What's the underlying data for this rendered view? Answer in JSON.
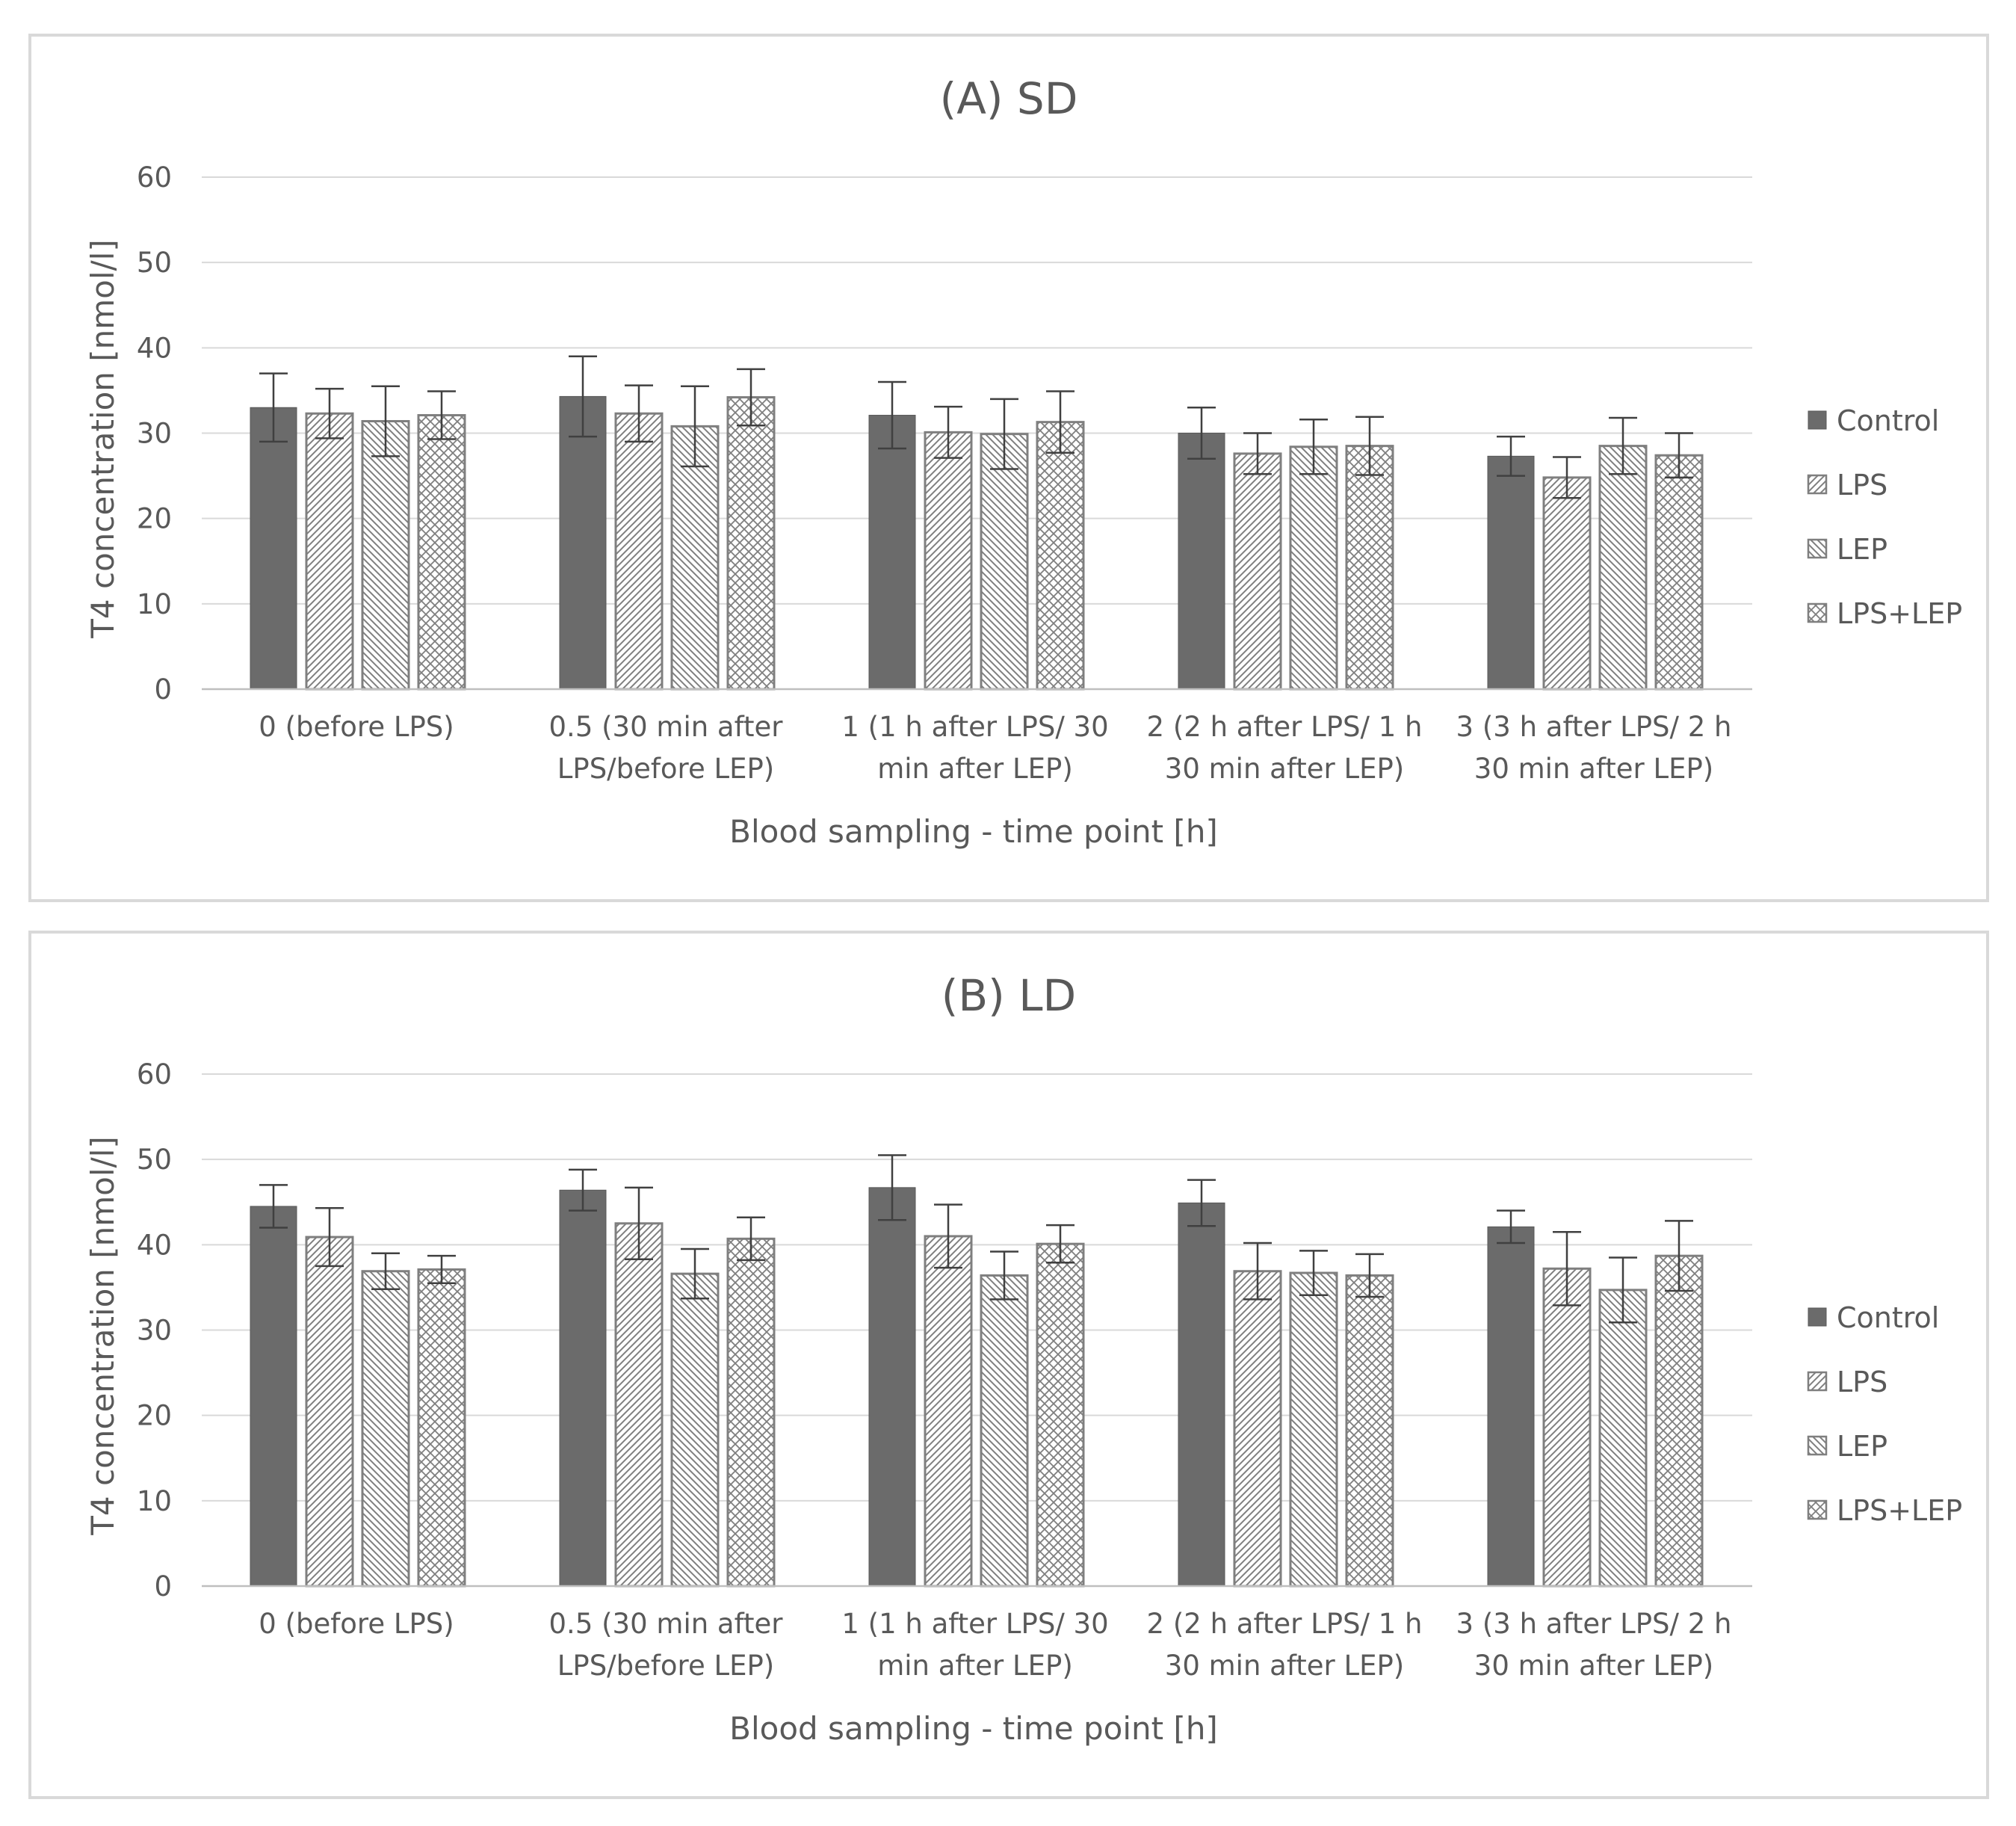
{
  "chart_data": [
    {
      "type": "bar",
      "title": "(A) SD",
      "xlabel": "Blood sampling - time point [h]",
      "ylabel": "T4 concentration [nmol/l]",
      "ylim": [
        0,
        60
      ],
      "yticks": [
        0,
        10,
        20,
        30,
        40,
        50,
        60
      ],
      "grid": true,
      "legend_position": "right",
      "categories": [
        [
          "0 (before LPS)"
        ],
        [
          "0.5 (30 min after",
          "LPS/before LEP)"
        ],
        [
          "1 (1 h after LPS/ 30",
          "min after LEP)"
        ],
        [
          "2 (2 h after LPS/ 1 h",
          "30 min after LEP)"
        ],
        [
          "3 (3 h after LPS/ 2 h",
          "30 min after LEP)"
        ]
      ],
      "series": [
        {
          "name": "Control",
          "pattern": "solid",
          "values": [
            33.0,
            34.3,
            32.1,
            30.0,
            27.3
          ],
          "errors": [
            4.0,
            4.7,
            3.9,
            3.0,
            2.3
          ]
        },
        {
          "name": "LPS",
          "pattern": "diag-up",
          "values": [
            32.3,
            32.3,
            30.1,
            27.6,
            24.8
          ],
          "errors": [
            2.9,
            3.3,
            3.0,
            2.4,
            2.4
          ]
        },
        {
          "name": "LEP",
          "pattern": "diag-down",
          "values": [
            31.4,
            30.8,
            29.9,
            28.4,
            28.5
          ],
          "errors": [
            4.1,
            4.7,
            4.1,
            3.2,
            3.3
          ]
        },
        {
          "name": "LPS+LEP",
          "pattern": "cross",
          "values": [
            32.1,
            34.2,
            31.3,
            28.5,
            27.4
          ],
          "errors": [
            2.8,
            3.3,
            3.6,
            3.4,
            2.6
          ]
        }
      ]
    },
    {
      "type": "bar",
      "title": "(B) LD",
      "xlabel": "Blood sampling - time point [h]",
      "ylabel": "T4 concentration [nmol/l]",
      "ylim": [
        0,
        60
      ],
      "yticks": [
        0,
        10,
        20,
        30,
        40,
        50,
        60
      ],
      "grid": true,
      "legend_position": "right",
      "categories": [
        [
          "0 (before LPS)"
        ],
        [
          "0.5 (30 min after",
          "LPS/before LEP)"
        ],
        [
          "1 (1 h after LPS/ 30",
          "min after LEP)"
        ],
        [
          "2 (2 h after LPS/ 1 h",
          "30 min after LEP)"
        ],
        [
          "3 (3 h after LPS/ 2 h",
          "30 min after LEP)"
        ]
      ],
      "series": [
        {
          "name": "Control",
          "pattern": "solid",
          "values": [
            44.5,
            46.4,
            46.7,
            44.9,
            42.1
          ],
          "errors": [
            2.5,
            2.4,
            3.8,
            2.7,
            1.9
          ]
        },
        {
          "name": "LPS",
          "pattern": "diag-up",
          "values": [
            40.9,
            42.5,
            41.0,
            36.9,
            37.2
          ],
          "errors": [
            3.4,
            4.2,
            3.7,
            3.3,
            4.3
          ]
        },
        {
          "name": "LEP",
          "pattern": "diag-down",
          "values": [
            36.9,
            36.6,
            36.4,
            36.7,
            34.7
          ],
          "errors": [
            2.1,
            2.9,
            2.8,
            2.6,
            3.8
          ]
        },
        {
          "name": "LPS+LEP",
          "pattern": "cross",
          "values": [
            37.1,
            40.7,
            40.1,
            36.4,
            38.7
          ],
          "errors": [
            1.6,
            2.5,
            2.2,
            2.5,
            4.1
          ]
        }
      ]
    }
  ]
}
